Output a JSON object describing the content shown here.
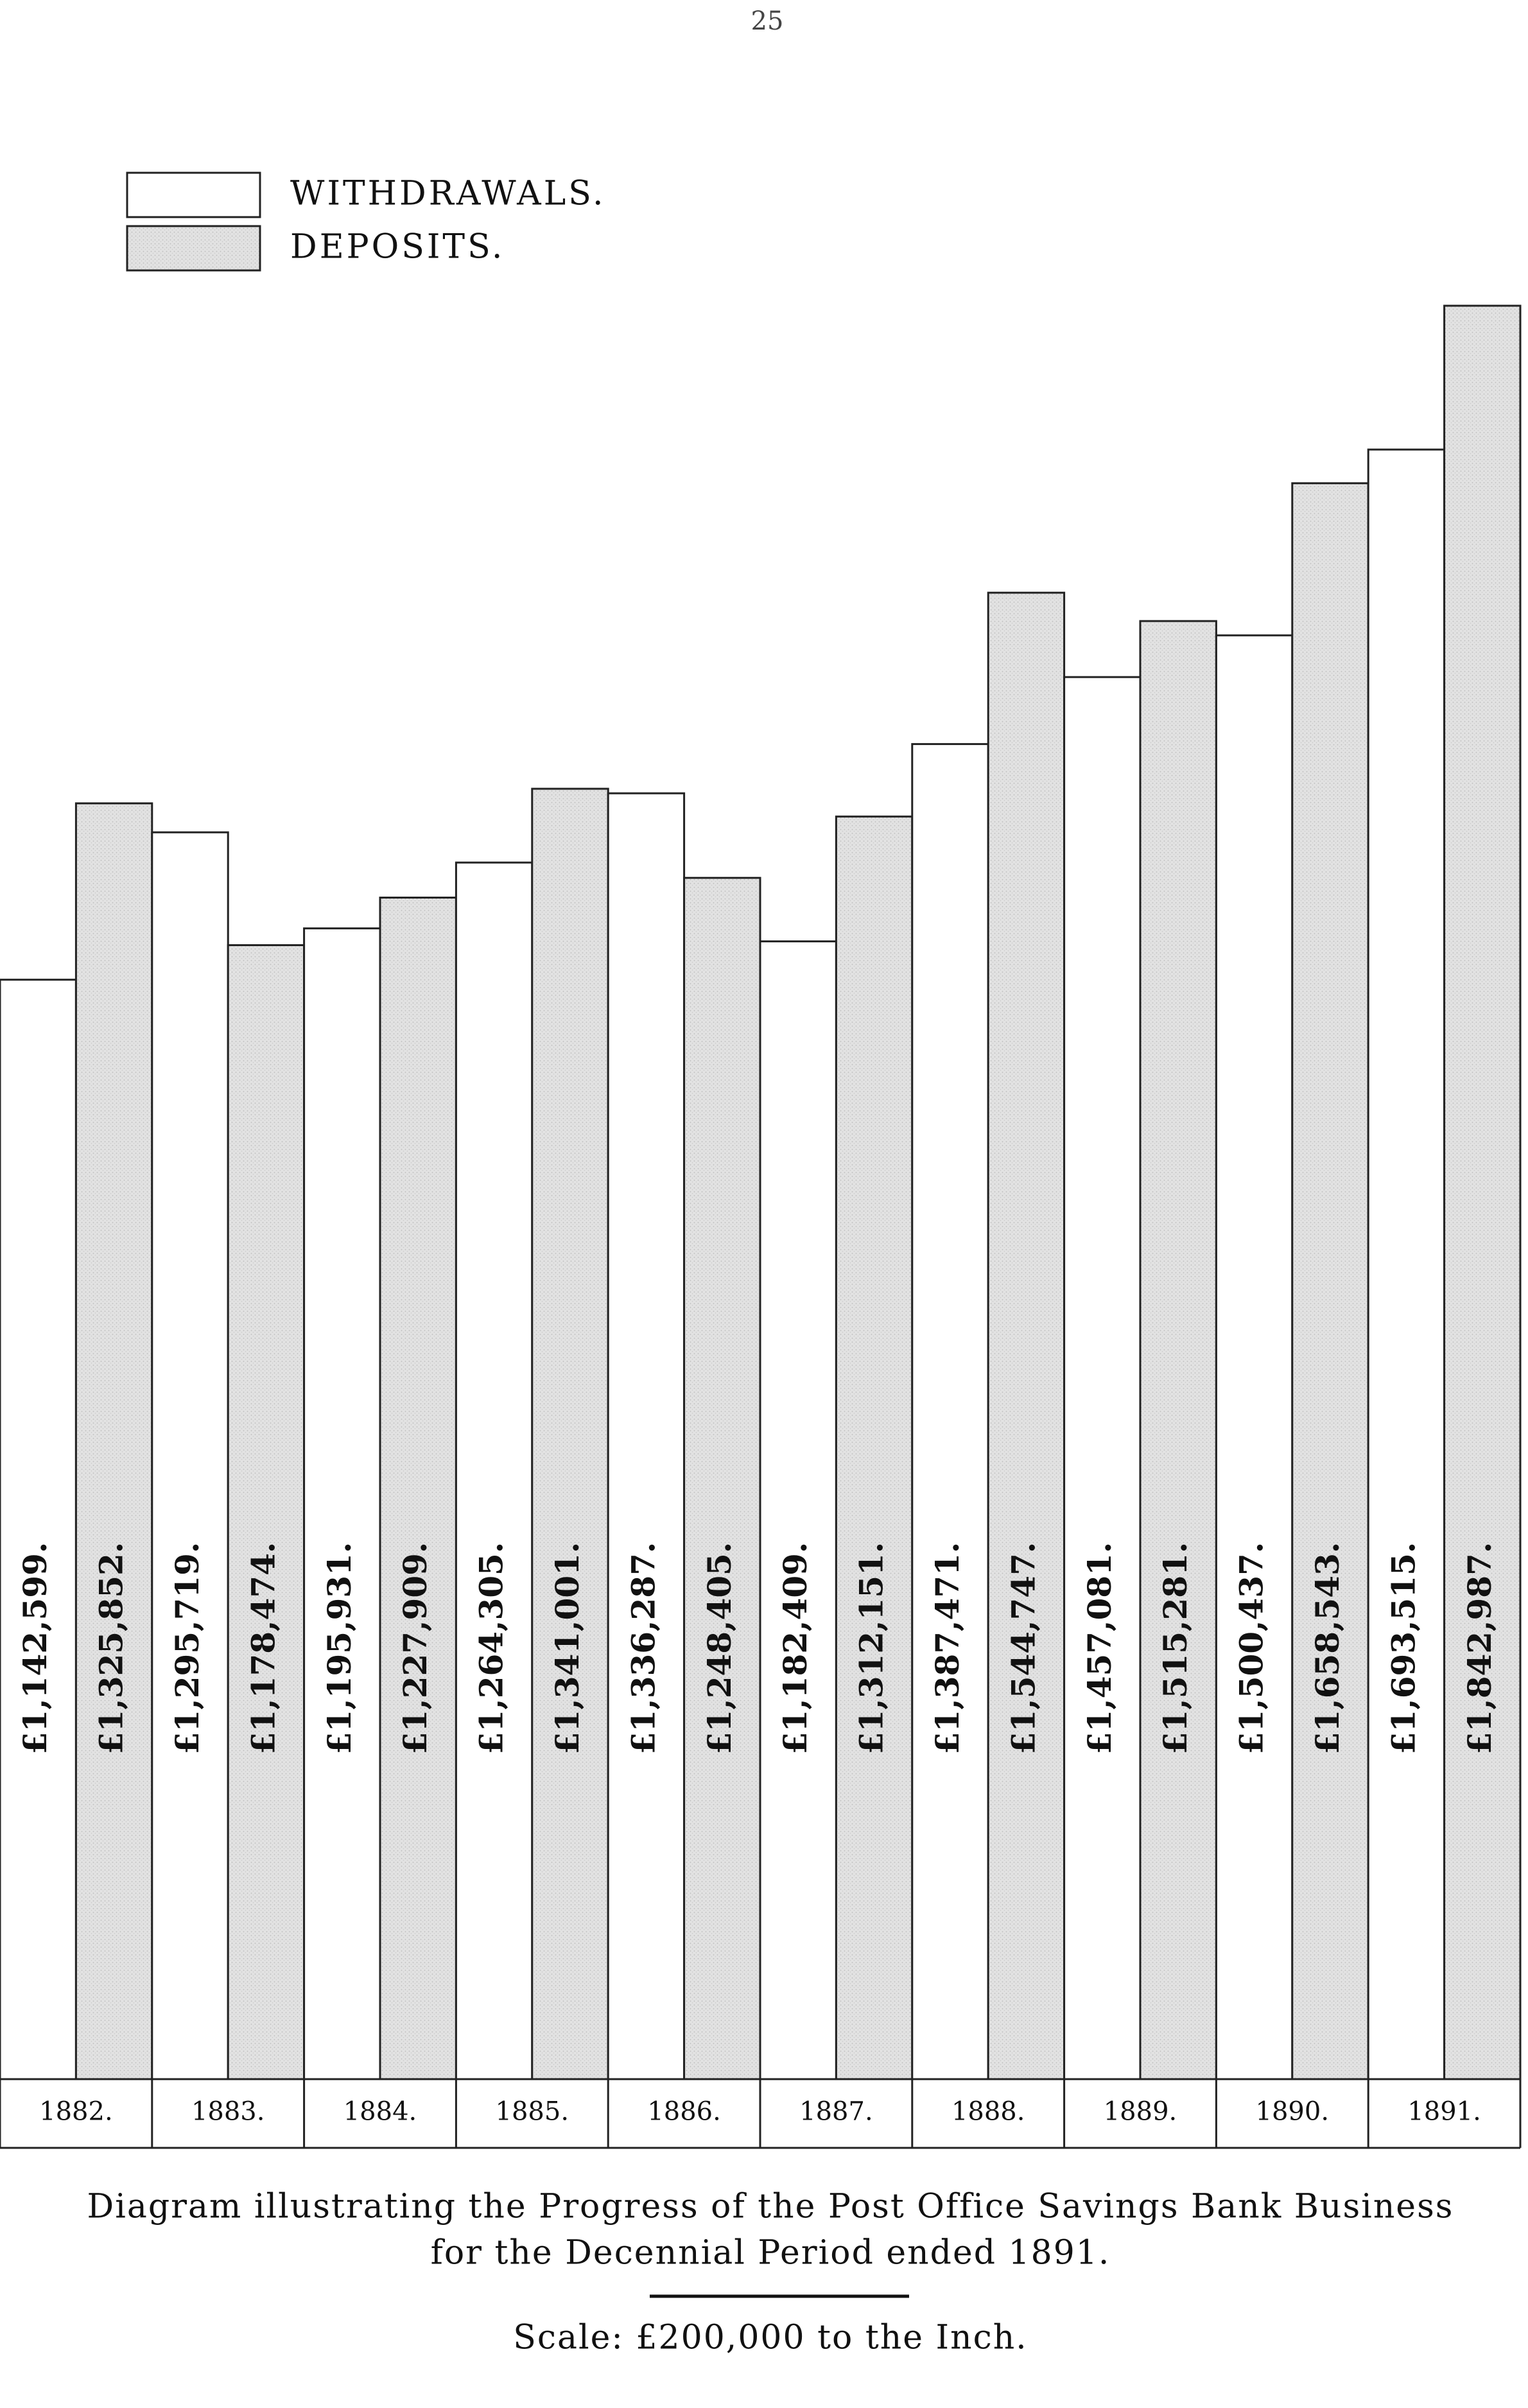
{
  "page_number": "25",
  "chart_data": {
    "type": "bar",
    "title_lines": [
      "Diagram illustrating the Progress of the Post Office Savings Bank Business",
      "for the Decennial Period ended 1891."
    ],
    "note": "Scale: £200,000 to the Inch.",
    "categories": [
      "1882.",
      "1883.",
      "1884.",
      "1885.",
      "1886.",
      "1887.",
      "1888.",
      "1889.",
      "1890.",
      "1891."
    ],
    "series": [
      {
        "name": "WITHDRAWALS.",
        "color": "#ffffff",
        "values": [
          1142599,
          1295719,
          1195931,
          1264305,
          1336287,
          1182409,
          1387471,
          1457081,
          1500437,
          1693515
        ],
        "value_labels": [
          "£1,142,599.",
          "£1,295,719.",
          "£1,195,931.",
          "£1,264,305.",
          "£1,336,287.",
          "£1,182,409.",
          "£1,387,471.",
          "£1,457,081.",
          "£1,500,437.",
          "£1,693,515."
        ]
      },
      {
        "name": "DEPOSITS.",
        "color": "#dcdcdc",
        "values": [
          1325852,
          1178474,
          1227909,
          1341001,
          1248405,
          1312151,
          1544747,
          1515281,
          1658543,
          1842987
        ],
        "value_labels": [
          "£1,325,852.",
          "£1,178,474.",
          "£1,227,909.",
          "£1,341,001.",
          "£1,248,405.",
          "£1,312,151.",
          "£1,544,747.",
          "£1,515,281.",
          "£1,658,543.",
          "£1,842,987."
        ]
      }
    ]
  }
}
